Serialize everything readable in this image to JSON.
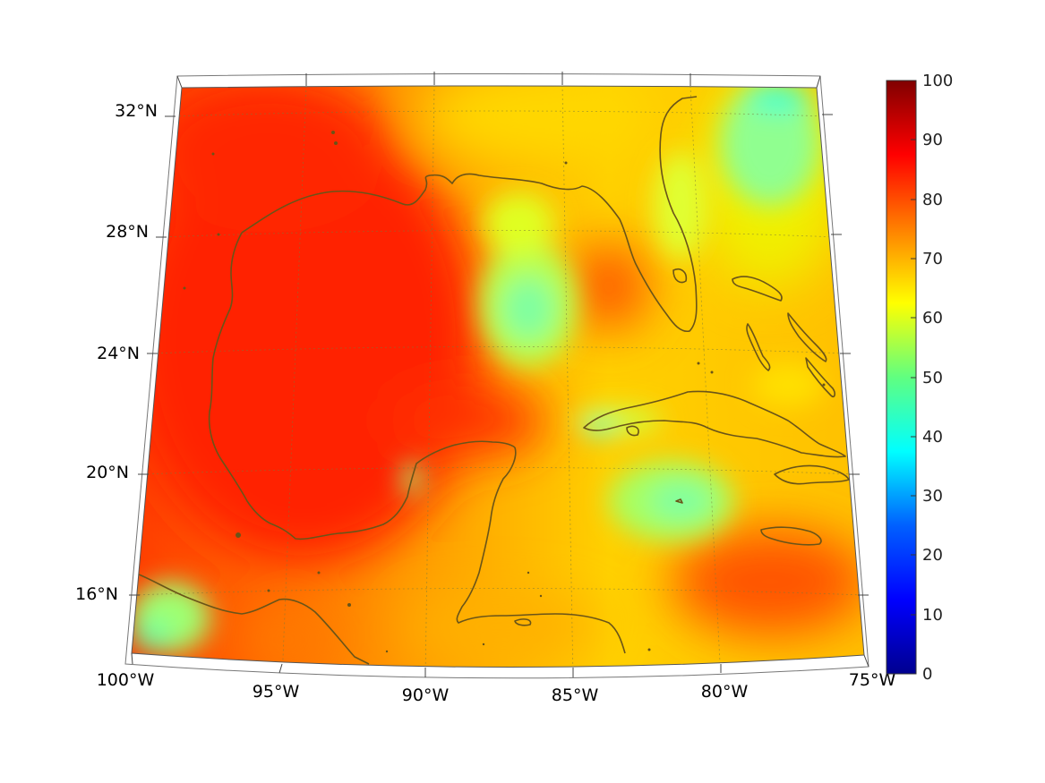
{
  "map": {
    "region": "Gulf of Mexico and northwestern Caribbean",
    "projection": "conic",
    "lon_range_deg": [
      -100,
      -75
    ],
    "lat_range_deg": [
      14,
      33
    ],
    "graticule": "dotted",
    "coastline_color": "#6a5418",
    "colormap": "jet"
  },
  "axes": {
    "lon_ticks": [
      "100°W",
      "95°W",
      "90°W",
      "85°W",
      "80°W",
      "75°W"
    ],
    "lat_ticks": [
      "32°N",
      "28°N",
      "24°N",
      "20°N",
      "16°N"
    ]
  },
  "colorbar": {
    "min": 0,
    "max": 100,
    "ticks": [
      "100",
      "90",
      "80",
      "70",
      "60",
      "50",
      "40",
      "30",
      "20",
      "10",
      "0"
    ],
    "colors": [
      "#00008f",
      "#0000ff",
      "#0080ff",
      "#00ffff",
      "#80ff80",
      "#ffff00",
      "#ff8000",
      "#ff0000",
      "#800000"
    ]
  },
  "field_summary": {
    "western_gulf": "85-90",
    "central_gulf_eddy": "50-55",
    "florida_peninsula": "60-70",
    "caribbean_south_of_cuba": "50-60",
    "pacific_coast_southwest": "50-60",
    "atlantic_northeast": "45-60"
  }
}
